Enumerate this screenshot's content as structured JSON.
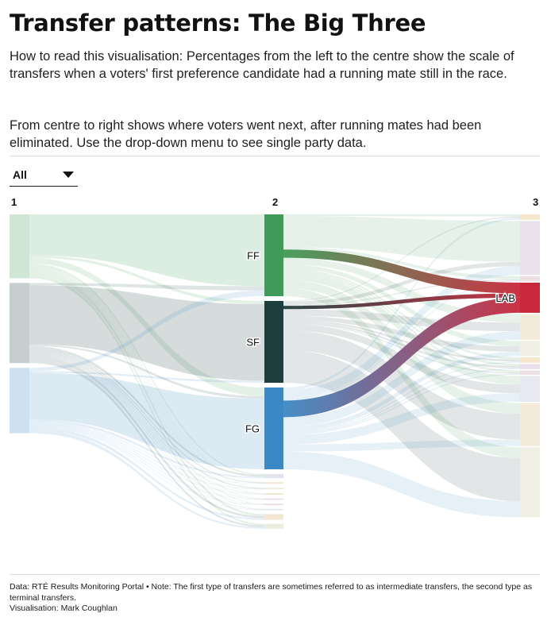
{
  "title": "Transfer patterns: The Big Three",
  "intro": {
    "p1": "How to read this visualisation: Percentages from the left to the centre show the scale of transfers when a voters' first preference candidate had a running mate still in the race.",
    "p2": "From centre to right shows where voters went next, after running mates had been eliminated. Use the drop-down menu to see single party data."
  },
  "dropdown": {
    "selected": "All"
  },
  "footer": {
    "source": "Data: RTÉ Results Monitoring Portal • Note: The first type of transfers are sometimes referred to as intermediate transfers, the second type as terminal transfers.",
    "credit": "Visualisation: Mark Coughlan"
  },
  "colors": {
    "FF": "#3f9b57",
    "SF": "#1e3d3f",
    "FG": "#3b88c4",
    "LAB": "#c8283a",
    "other_palette": [
      "#e6c98d",
      "#cfbed6",
      "#d8b7c3",
      "#c9cce0",
      "#e9d2ae",
      "#dcdcc4"
    ]
  },
  "chart_data": {
    "type": "sankey",
    "stage_labels": [
      "1",
      "2",
      "3"
    ],
    "nodes": {
      "stage1": [
        {
          "id": "FF",
          "label": ""
        },
        {
          "id": "SF",
          "label": ""
        },
        {
          "id": "FG",
          "label": ""
        }
      ],
      "stage2": [
        {
          "id": "FF",
          "label": "FF",
          "value": 100
        },
        {
          "id": "SF",
          "label": "SF",
          "value": 100
        },
        {
          "id": "FG",
          "label": "FG",
          "value": 100
        },
        {
          "id": "O1",
          "label": "",
          "value": 10
        },
        {
          "id": "O2",
          "label": "",
          "value": 4
        },
        {
          "id": "O3",
          "label": "",
          "value": 4
        },
        {
          "id": "O4",
          "label": "",
          "value": 3
        },
        {
          "id": "O5",
          "label": "",
          "value": 3
        },
        {
          "id": "O6",
          "label": "",
          "value": 3
        },
        {
          "id": "O7",
          "label": "",
          "value": 3
        },
        {
          "id": "O8",
          "label": "",
          "value": 14
        },
        {
          "id": "O9",
          "label": "",
          "value": 12
        }
      ],
      "stage3": [
        {
          "id": "T1",
          "label": "",
          "value": 5
        },
        {
          "id": "T2",
          "label": "",
          "value": 50
        },
        {
          "id": "T3",
          "label": "",
          "value": 5
        },
        {
          "id": "LAB",
          "label": "LAB",
          "value": 28
        },
        {
          "id": "T4",
          "label": "",
          "value": 24
        },
        {
          "id": "T5",
          "label": "",
          "value": 14
        },
        {
          "id": "T6",
          "label": "",
          "value": 5
        },
        {
          "id": "T7",
          "label": "",
          "value": 5
        },
        {
          "id": "T8",
          "label": "",
          "value": 4
        },
        {
          "id": "T9",
          "label": "",
          "value": 24
        },
        {
          "id": "T10",
          "label": "",
          "value": 40
        },
        {
          "id": "T11",
          "label": "",
          "value": 65
        }
      ]
    },
    "links_1_2": [
      {
        "source": "FF",
        "target": "FF",
        "value": 50
      },
      {
        "source": "FF",
        "target": "SF",
        "value": 3
      },
      {
        "source": "FF",
        "target": "FG",
        "value": 7
      },
      {
        "source": "FF",
        "target": "O1",
        "value": 3
      },
      {
        "source": "FF",
        "target": "O2",
        "value": 1
      },
      {
        "source": "FF",
        "target": "O3",
        "value": 1
      },
      {
        "source": "FF",
        "target": "O4",
        "value": 1
      },
      {
        "source": "FF",
        "target": "O5",
        "value": 1
      },
      {
        "source": "FF",
        "target": "O6",
        "value": 1
      },
      {
        "source": "FF",
        "target": "O7",
        "value": 1
      },
      {
        "source": "FF",
        "target": "O8",
        "value": 5
      },
      {
        "source": "FF",
        "target": "O9",
        "value": 4
      },
      {
        "source": "SF",
        "target": "FF",
        "value": 3
      },
      {
        "source": "SF",
        "target": "SF",
        "value": 72
      },
      {
        "source": "SF",
        "target": "FG",
        "value": 2
      },
      {
        "source": "SF",
        "target": "O1",
        "value": 4
      },
      {
        "source": "SF",
        "target": "O2",
        "value": 2
      },
      {
        "source": "SF",
        "target": "O3",
        "value": 2
      },
      {
        "source": "SF",
        "target": "O4",
        "value": 1
      },
      {
        "source": "SF",
        "target": "O5",
        "value": 1
      },
      {
        "source": "SF",
        "target": "O6",
        "value": 1
      },
      {
        "source": "SF",
        "target": "O7",
        "value": 1
      },
      {
        "source": "SF",
        "target": "O8",
        "value": 5
      },
      {
        "source": "SF",
        "target": "O9",
        "value": 4
      },
      {
        "source": "FG",
        "target": "FF",
        "value": 4
      },
      {
        "source": "FG",
        "target": "SF",
        "value": 2
      },
      {
        "source": "FG",
        "target": "FG",
        "value": 57
      },
      {
        "source": "FG",
        "target": "O1",
        "value": 3
      },
      {
        "source": "FG",
        "target": "O2",
        "value": 1
      },
      {
        "source": "FG",
        "target": "O3",
        "value": 1
      },
      {
        "source": "FG",
        "target": "O4",
        "value": 1
      },
      {
        "source": "FG",
        "target": "O5",
        "value": 1
      },
      {
        "source": "FG",
        "target": "O6",
        "value": 1
      },
      {
        "source": "FG",
        "target": "O7",
        "value": 1
      },
      {
        "source": "FG",
        "target": "O8",
        "value": 4
      },
      {
        "source": "FG",
        "target": "O9",
        "value": 4
      }
    ],
    "links_2_3": [
      {
        "source": "FF",
        "target": "T1",
        "value": 2
      },
      {
        "source": "FF",
        "target": "T2",
        "value": 38
      },
      {
        "source": "FF",
        "target": "T3",
        "value": 3
      },
      {
        "source": "FF",
        "target": "LAB",
        "value": 10
      },
      {
        "source": "FF",
        "target": "T4",
        "value": 8
      },
      {
        "source": "FF",
        "target": "T5",
        "value": 5
      },
      {
        "source": "FF",
        "target": "T6",
        "value": 2
      },
      {
        "source": "FF",
        "target": "T7",
        "value": 2
      },
      {
        "source": "FF",
        "target": "T8",
        "value": 2
      },
      {
        "source": "FF",
        "target": "T9",
        "value": 8
      },
      {
        "source": "FF",
        "target": "T10",
        "value": 10
      },
      {
        "source": "FF",
        "target": "T11",
        "value": 10
      },
      {
        "source": "SF",
        "target": "T1",
        "value": 1
      },
      {
        "source": "SF",
        "target": "T2",
        "value": 4
      },
      {
        "source": "SF",
        "target": "T3",
        "value": 1
      },
      {
        "source": "SF",
        "target": "LAB",
        "value": 4
      },
      {
        "source": "SF",
        "target": "T4",
        "value": 8
      },
      {
        "source": "SF",
        "target": "T5",
        "value": 5
      },
      {
        "source": "SF",
        "target": "T6",
        "value": 2
      },
      {
        "source": "SF",
        "target": "T7",
        "value": 2
      },
      {
        "source": "SF",
        "target": "T8",
        "value": 1
      },
      {
        "source": "SF",
        "target": "T9",
        "value": 8
      },
      {
        "source": "SF",
        "target": "T10",
        "value": 24
      },
      {
        "source": "SF",
        "target": "T11",
        "value": 40
      },
      {
        "source": "FG",
        "target": "T1",
        "value": 2
      },
      {
        "source": "FG",
        "target": "T2",
        "value": 8
      },
      {
        "source": "FG",
        "target": "T3",
        "value": 1
      },
      {
        "source": "FG",
        "target": "LAB",
        "value": 14
      },
      {
        "source": "FG",
        "target": "T4",
        "value": 8
      },
      {
        "source": "FG",
        "target": "T5",
        "value": 4
      },
      {
        "source": "FG",
        "target": "T6",
        "value": 1
      },
      {
        "source": "FG",
        "target": "T7",
        "value": 1
      },
      {
        "source": "FG",
        "target": "T8",
        "value": 1
      },
      {
        "source": "FG",
        "target": "T9",
        "value": 8
      },
      {
        "source": "FG",
        "target": "T10",
        "value": 6
      },
      {
        "source": "FG",
        "target": "T11",
        "value": 15
      }
    ]
  }
}
